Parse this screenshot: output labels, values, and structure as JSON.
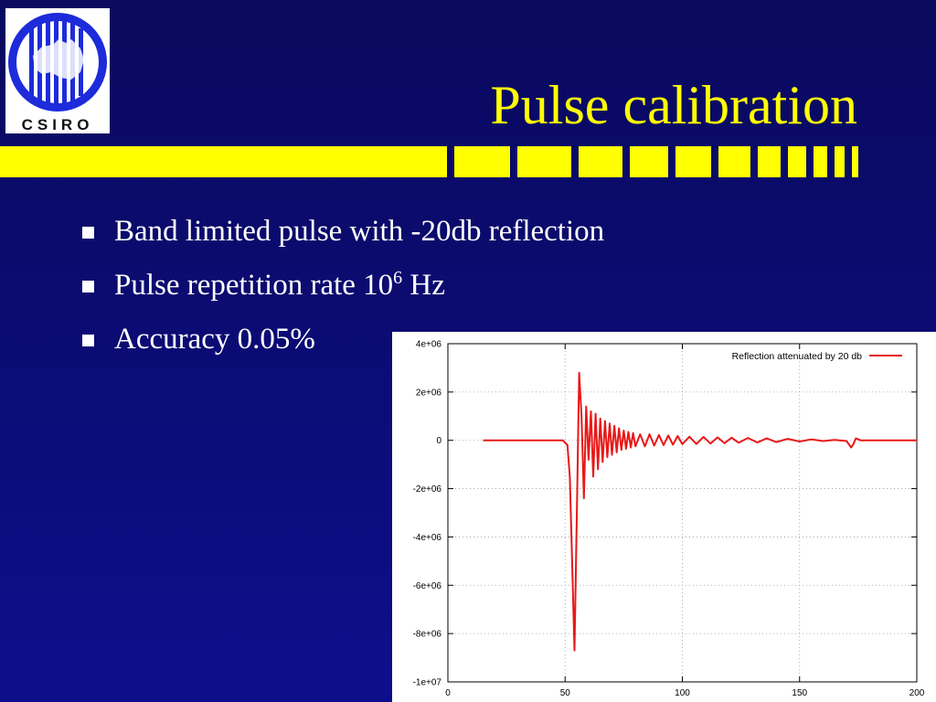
{
  "slide": {
    "title": "Pulse calibration",
    "logo": {
      "text": "CSIRO",
      "colors": {
        "ring": "#1d2bdb",
        "bars": "#1d2bdb",
        "background": "#ffffff"
      }
    },
    "accent_color": "#ffff00",
    "background_color": "#0b0b72",
    "bullets": [
      {
        "text": "Band limited pulse with -20db reflection"
      },
      {
        "text": "Pulse repetition rate 10",
        "superscript": "6",
        "suffix": " Hz"
      },
      {
        "text": "Accuracy  0.05%"
      }
    ]
  },
  "chart_data": {
    "type": "line",
    "title": "",
    "xlabel": "",
    "ylabel": "",
    "xlim": [
      0,
      200
    ],
    "ylim": [
      -10000000,
      4000000
    ],
    "grid": true,
    "legend_position": "top-right",
    "x_ticks": [
      0,
      50,
      100,
      150,
      200
    ],
    "x_tick_labels": [
      "0",
      "50",
      "100",
      "150",
      "200"
    ],
    "y_ticks": [
      4000000,
      2000000,
      0,
      -2000000,
      -4000000,
      -6000000,
      -8000000,
      -10000000
    ],
    "y_tick_labels": [
      "4e+06",
      "2e+06",
      "0",
      "-2e+06",
      "-4e+06",
      "-6e+06",
      "-8e+06",
      "-1e+07"
    ],
    "series": [
      {
        "name": "Reflection attenuated by 20 db",
        "color": "#e81818",
        "x": [
          15,
          45,
          49,
          51,
          52,
          53,
          54,
          55,
          56,
          57,
          58,
          59,
          60,
          61,
          62,
          63,
          64,
          65,
          66,
          67,
          68,
          69,
          70,
          71,
          72,
          73,
          74,
          75,
          76,
          77,
          78,
          79,
          80,
          82,
          84,
          86,
          88,
          90,
          92,
          94,
          96,
          98,
          100,
          103,
          106,
          109,
          112,
          115,
          118,
          121,
          124,
          128,
          132,
          136,
          140,
          145,
          150,
          155,
          160,
          165,
          170,
          172,
          173,
          174,
          176,
          180,
          190,
          200
        ],
        "y": [
          0,
          0,
          0,
          -200000,
          -1500000,
          -5000000,
          -8700000,
          -3000000,
          2800000,
          1000000,
          -2400000,
          1400000,
          -800000,
          1200000,
          -1500000,
          1100000,
          -1200000,
          900000,
          -900000,
          800000,
          -700000,
          700000,
          -600000,
          600000,
          -500000,
          500000,
          -400000,
          400000,
          -350000,
          350000,
          -300000,
          300000,
          -250000,
          250000,
          -250000,
          250000,
          -220000,
          220000,
          -200000,
          200000,
          -180000,
          180000,
          -160000,
          150000,
          -150000,
          140000,
          -130000,
          120000,
          -120000,
          110000,
          -100000,
          100000,
          -90000,
          80000,
          -70000,
          60000,
          -50000,
          40000,
          -30000,
          20000,
          -30000,
          -300000,
          -150000,
          80000,
          0,
          0,
          0,
          0
        ]
      }
    ]
  }
}
